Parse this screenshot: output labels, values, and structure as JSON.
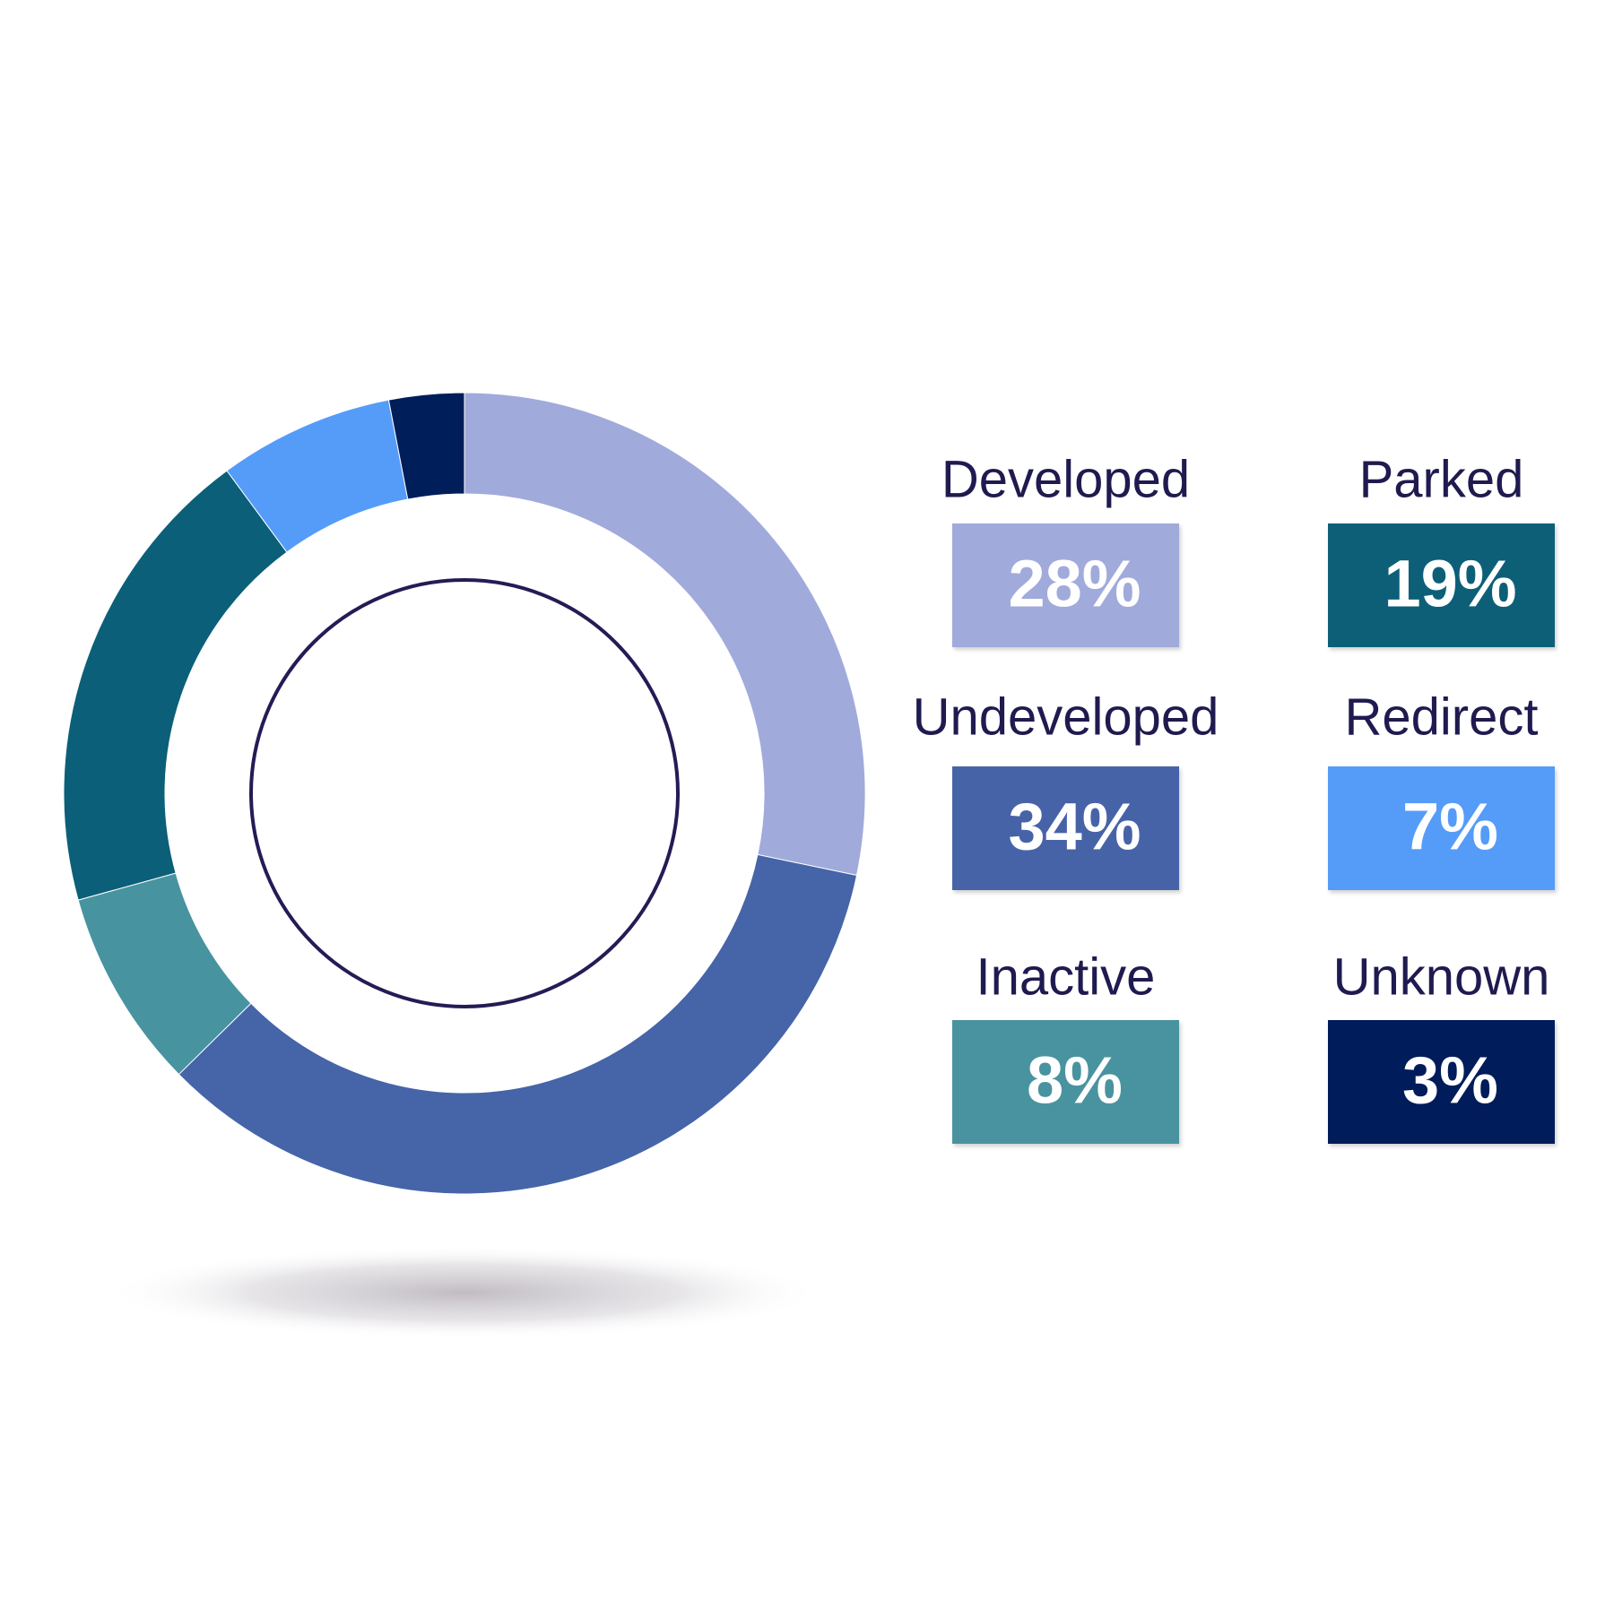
{
  "chart_data": {
    "type": "pie",
    "categories": [
      "Developed",
      "Undeveloped",
      "Inactive",
      "Parked",
      "Redirect",
      "Unknown"
    ],
    "values": [
      28,
      34,
      8,
      19,
      7,
      3
    ],
    "value_labels": [
      "28%",
      "34%",
      "8%",
      "19%",
      "7%",
      "3%"
    ],
    "colors": [
      "#a0aadb",
      "#4664a8",
      "#4893a0",
      "#0b5f78",
      "#559cf9",
      "#001e5a"
    ]
  }
}
